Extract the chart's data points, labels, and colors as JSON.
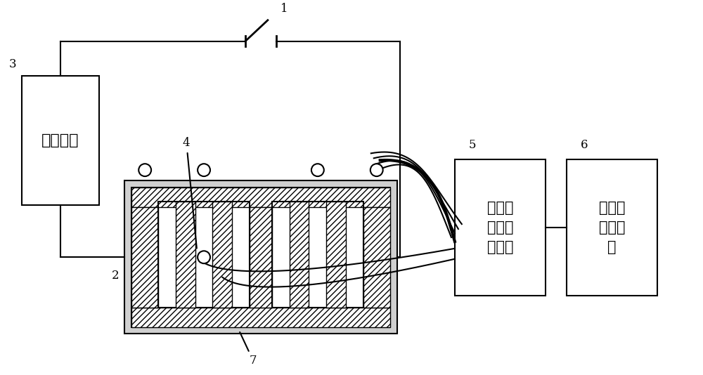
{
  "bg_color": "#ffffff",
  "line_color": "#000000",
  "label_1": "1",
  "label_2": "2",
  "label_3": "3",
  "label_4": "4",
  "label_5": "5",
  "label_6": "6",
  "label_7": "7",
  "box3_text": "短路装置",
  "box5_text": "感应电\n动势测\n量装置",
  "box6_text": "磁密度\n计算装\n置",
  "font_size_label": 12,
  "font_size_box3": 16,
  "font_size_box56": 15
}
